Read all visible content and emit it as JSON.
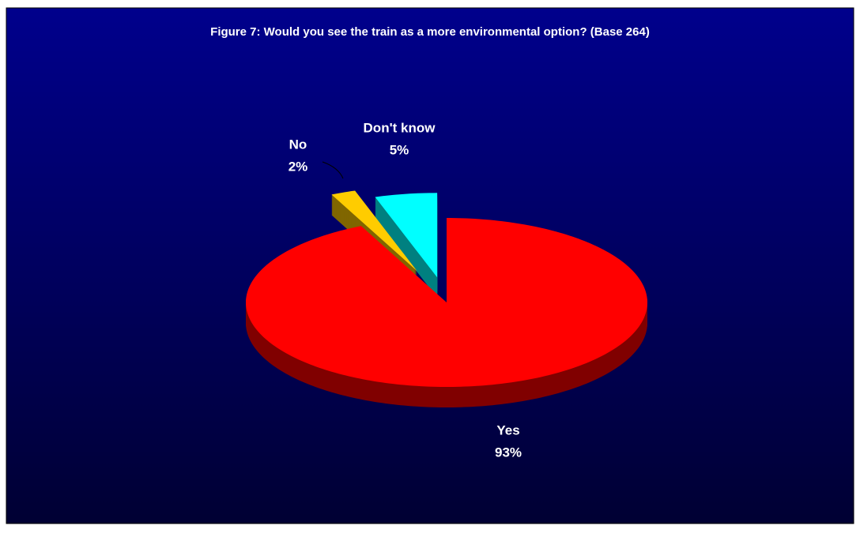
{
  "chart_data": {
    "type": "pie",
    "title": "Figure 7: Would you see the train as a more environmental option? (Base 264)",
    "categories": [
      "Yes",
      "No",
      "Don't know"
    ],
    "values": [
      93,
      2,
      5
    ],
    "value_labels": [
      "93%",
      "2%",
      "5%"
    ],
    "colors": [
      "#ff0000",
      "#ffcc00",
      "#00ffff"
    ]
  }
}
